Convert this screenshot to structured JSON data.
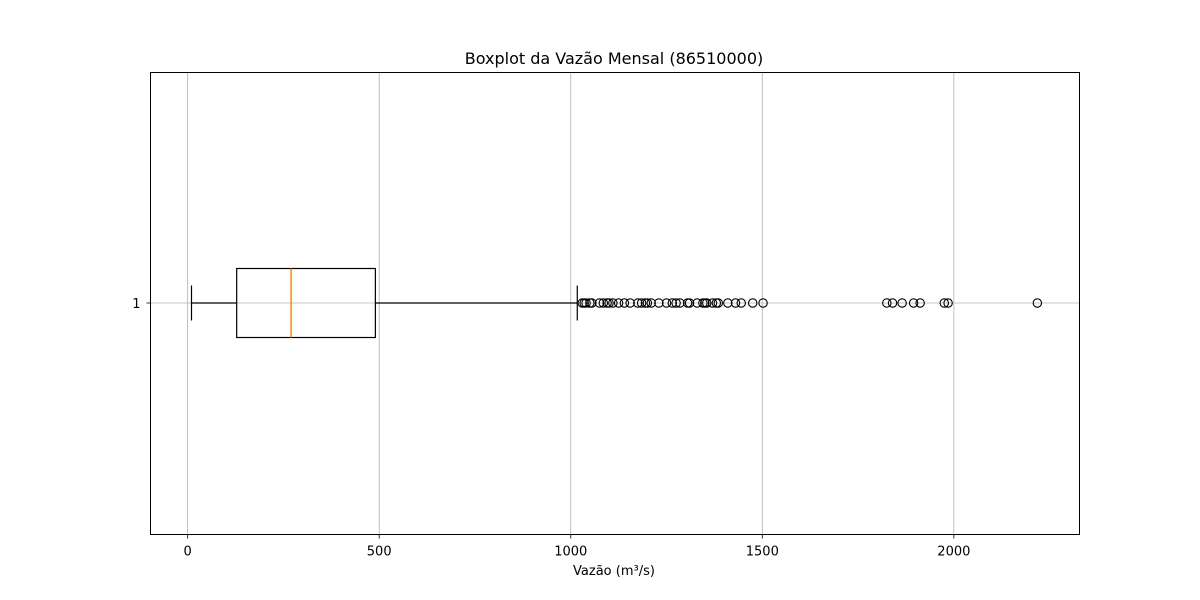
{
  "chart_data": {
    "type": "boxplot",
    "orientation": "horizontal",
    "title": "Boxplot da Vazão Mensal (86510000)",
    "xlabel": "Vazão (m³/s)",
    "ylabel": "",
    "xlim": [
      -97,
      2328
    ],
    "x_ticks": [
      0,
      500,
      1000,
      1500,
      2000
    ],
    "x_tick_labels": [
      "0",
      "500",
      "1000",
      "1500",
      "2000"
    ],
    "y_tick_labels": [
      "1"
    ],
    "grid": true,
    "box": {
      "category": "1",
      "whisker_low": 10,
      "q1": 128,
      "median": 270,
      "q3": 490,
      "whisker_high": 1017,
      "outliers": [
        1030,
        1035,
        1040,
        1050,
        1055,
        1075,
        1085,
        1095,
        1100,
        1110,
        1125,
        1140,
        1155,
        1175,
        1185,
        1195,
        1200,
        1210,
        1230,
        1250,
        1265,
        1275,
        1285,
        1305,
        1310,
        1330,
        1345,
        1350,
        1355,
        1370,
        1380,
        1385,
        1410,
        1430,
        1445,
        1475,
        1502,
        1825,
        1840,
        1865,
        1895,
        1912,
        1975,
        1985,
        2218
      ]
    },
    "colors": {
      "box": "#000000",
      "median": "#ff7f0e",
      "grid": "#b0b0b0"
    }
  }
}
